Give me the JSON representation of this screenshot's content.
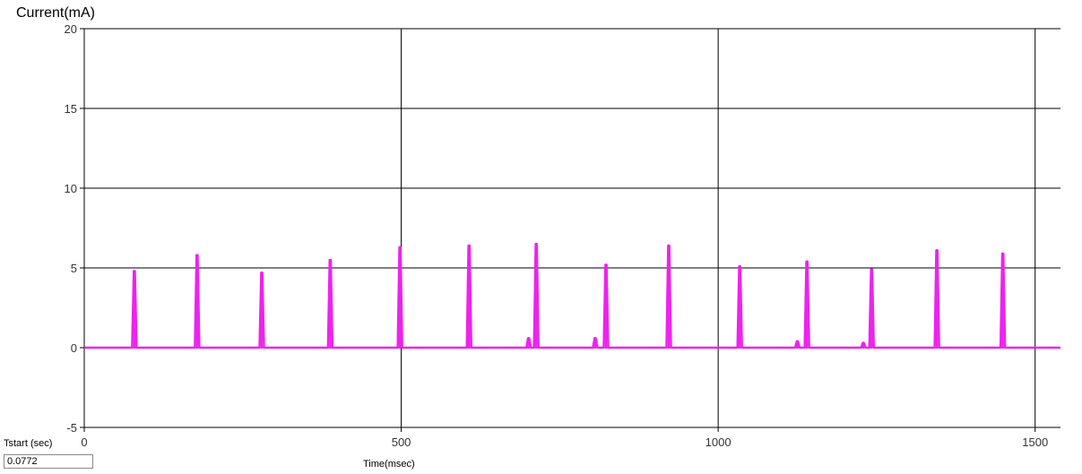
{
  "chart_data": {
    "type": "line",
    "ylabel": "Current(mA)",
    "xlabel": "Time(msec)",
    "xlim": [
      0,
      1540
    ],
    "ylim": [
      -5,
      20
    ],
    "xticks": [
      0,
      500,
      1000,
      1500
    ],
    "yticks": [
      -5,
      0,
      5,
      10,
      15,
      20
    ],
    "grid": true,
    "colors": {
      "line": "#ee22ee",
      "grid": "#000000",
      "axis": "#000000"
    },
    "series": [
      {
        "peaks": [
          {
            "x": 79,
            "y": 4.8
          },
          {
            "x": 178,
            "y": 5.8
          },
          {
            "x": 280,
            "y": 4.7
          },
          {
            "x": 388,
            "y": 5.5
          },
          {
            "x": 498,
            "y": 6.3
          },
          {
            "x": 607,
            "y": 6.4
          },
          {
            "x": 701,
            "y": 0.6
          },
          {
            "x": 713,
            "y": 6.5
          },
          {
            "x": 806,
            "y": 0.6
          },
          {
            "x": 823,
            "y": 5.2
          },
          {
            "x": 922,
            "y": 6.4
          },
          {
            "x": 1034,
            "y": 5.1
          },
          {
            "x": 1125,
            "y": 0.4
          },
          {
            "x": 1140,
            "y": 5.4
          },
          {
            "x": 1229,
            "y": 0.3
          },
          {
            "x": 1242,
            "y": 4.9
          },
          {
            "x": 1345,
            "y": 6.1
          },
          {
            "x": 1449,
            "y": 5.9
          }
        ],
        "baseline": 0
      }
    ]
  },
  "controls": {
    "tstart_label": "Tstart (sec)",
    "tstart_value": "0.0772"
  }
}
